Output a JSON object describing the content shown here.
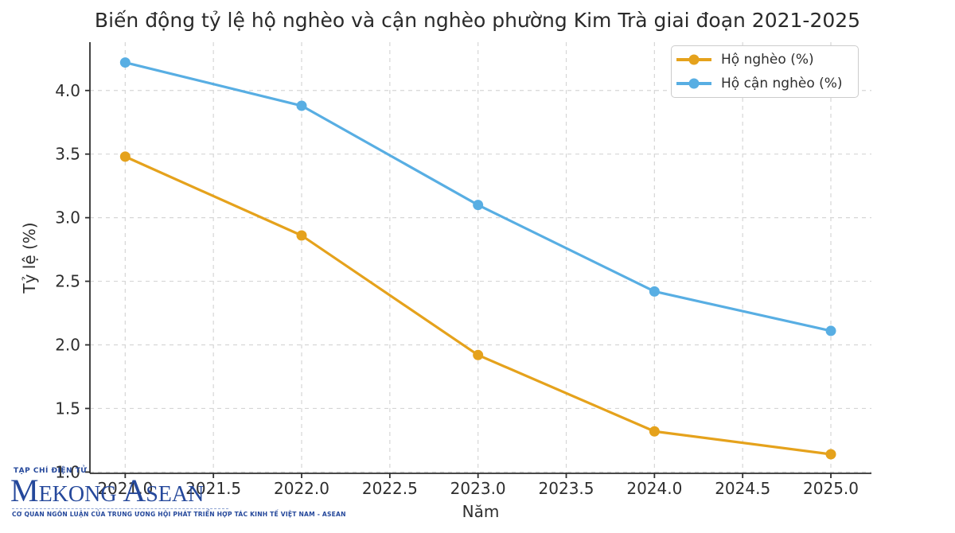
{
  "chart_data": {
    "type": "line",
    "title": "Biến động tỷ lệ hộ nghèo và cận nghèo phường Kim Trà giai đoạn 2021-2025",
    "xlabel": "Năm",
    "ylabel": "Tỷ lệ (%)",
    "x": [
      2021,
      2022,
      2023,
      2024,
      2025
    ],
    "series": [
      {
        "name": "Hộ nghèo (%)",
        "color": "#e5a21c",
        "values": [
          3.48,
          2.86,
          1.92,
          1.32,
          1.14
        ]
      },
      {
        "name": "Hộ cận nghèo (%)",
        "color": "#58aee3",
        "values": [
          4.22,
          3.88,
          3.1,
          2.42,
          2.11
        ]
      }
    ],
    "xticks": {
      "values": [
        2021.0,
        2021.5,
        2022.0,
        2022.5,
        2023.0,
        2023.5,
        2024.0,
        2024.5,
        2025.0
      ],
      "labels": [
        "2021.0",
        "2021.5",
        "2022.0",
        "2022.5",
        "2023.0",
        "2023.5",
        "2024.0",
        "2024.5",
        "2025.0"
      ]
    },
    "yticks": {
      "values": [
        1.0,
        1.5,
        2.0,
        2.5,
        3.0,
        3.5,
        4.0
      ],
      "labels": [
        "1.0",
        "1.5",
        "2.0",
        "2.5",
        "3.0",
        "3.5",
        "4.0"
      ]
    },
    "xlim": [
      2020.8,
      2025.23
    ],
    "ylim": [
      0.99,
      4.38
    ],
    "grid": true,
    "grid_style": "dashed",
    "legend_position": "upper right",
    "marker": "circle",
    "colors": {
      "grid": "#d6d6d6",
      "spine": "#2f2f2f",
      "tick_text": "#2e2e2e",
      "title_text": "#2a2a2a"
    }
  },
  "watermark": {
    "top": "TẠP CHÍ ĐIỆN TỬ",
    "main": "Mekong Asean",
    "main_rendered": "MEKONG ASEAN",
    "tagline": "CƠ QUAN NGÔN LUẬN CỦA TRUNG ƯƠNG HỘI PHÁT TRIỂN HỢP TÁC KINH TẾ VIỆT NAM - ASEAN",
    "color": "#25489b"
  }
}
